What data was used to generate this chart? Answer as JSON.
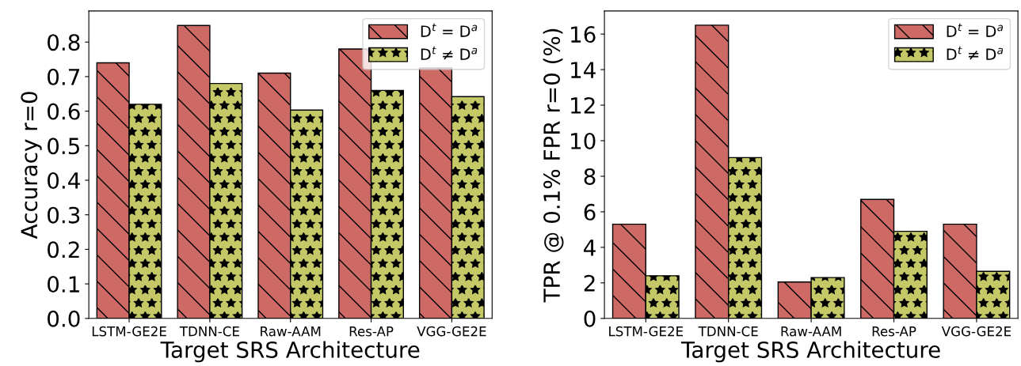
{
  "chart_data": [
    {
      "type": "bar",
      "ylabel": "Accuracy r=0",
      "xlabel": "Target SRS Architecture",
      "categories": [
        "LSTM-GE2E",
        "TDNN-CE",
        "Raw-AAM",
        "Res-AP",
        "VGG-GE2E"
      ],
      "ylim": [
        0,
        0.89
      ],
      "yticks": [
        {
          "value": 0,
          "label": "0.0"
        },
        0.1,
        0.2,
        0.3,
        0.4,
        0.5,
        0.6,
        0.7,
        0.8
      ],
      "grid": false,
      "legend": "top right",
      "series": [
        {
          "name": "D$^{t}$ = D$^{a}$",
          "color": "#cd6a66",
          "values": [
            0.74,
            0.848,
            0.71,
            0.78,
            0.725
          ]
        },
        {
          "name": "D$^{t}$ ≠ D$^{a}$",
          "color": "#c4c867",
          "values": [
            0.62,
            0.68,
            0.603,
            0.66,
            0.642
          ]
        }
      ]
    },
    {
      "type": "bar",
      "ylabel": "TPR @ 0.1% FPR r=0 (%)",
      "xlabel": "Target SRS Architecture",
      "categories": [
        "LSTM-GE2E",
        "TDNN-CE",
        "Raw-AAM",
        "Res-AP",
        "VGG-GE2E"
      ],
      "ylim": [
        0,
        17.3
      ],
      "yticks": [
        0,
        2,
        4,
        6,
        8,
        10,
        12,
        14,
        16
      ],
      "grid": false,
      "legend": "top right",
      "series": [
        {
          "name": "D$^{t}$ = D$^{a}$",
          "color": "#cd6a66",
          "values": [
            5.3,
            16.5,
            2.05,
            6.7,
            5.3
          ]
        },
        {
          "name": "D$^{t}$ ≠ D$^{a}$",
          "color": "#c4c867",
          "values": [
            2.4,
            9.05,
            2.3,
            4.9,
            2.65
          ]
        }
      ]
    }
  ]
}
